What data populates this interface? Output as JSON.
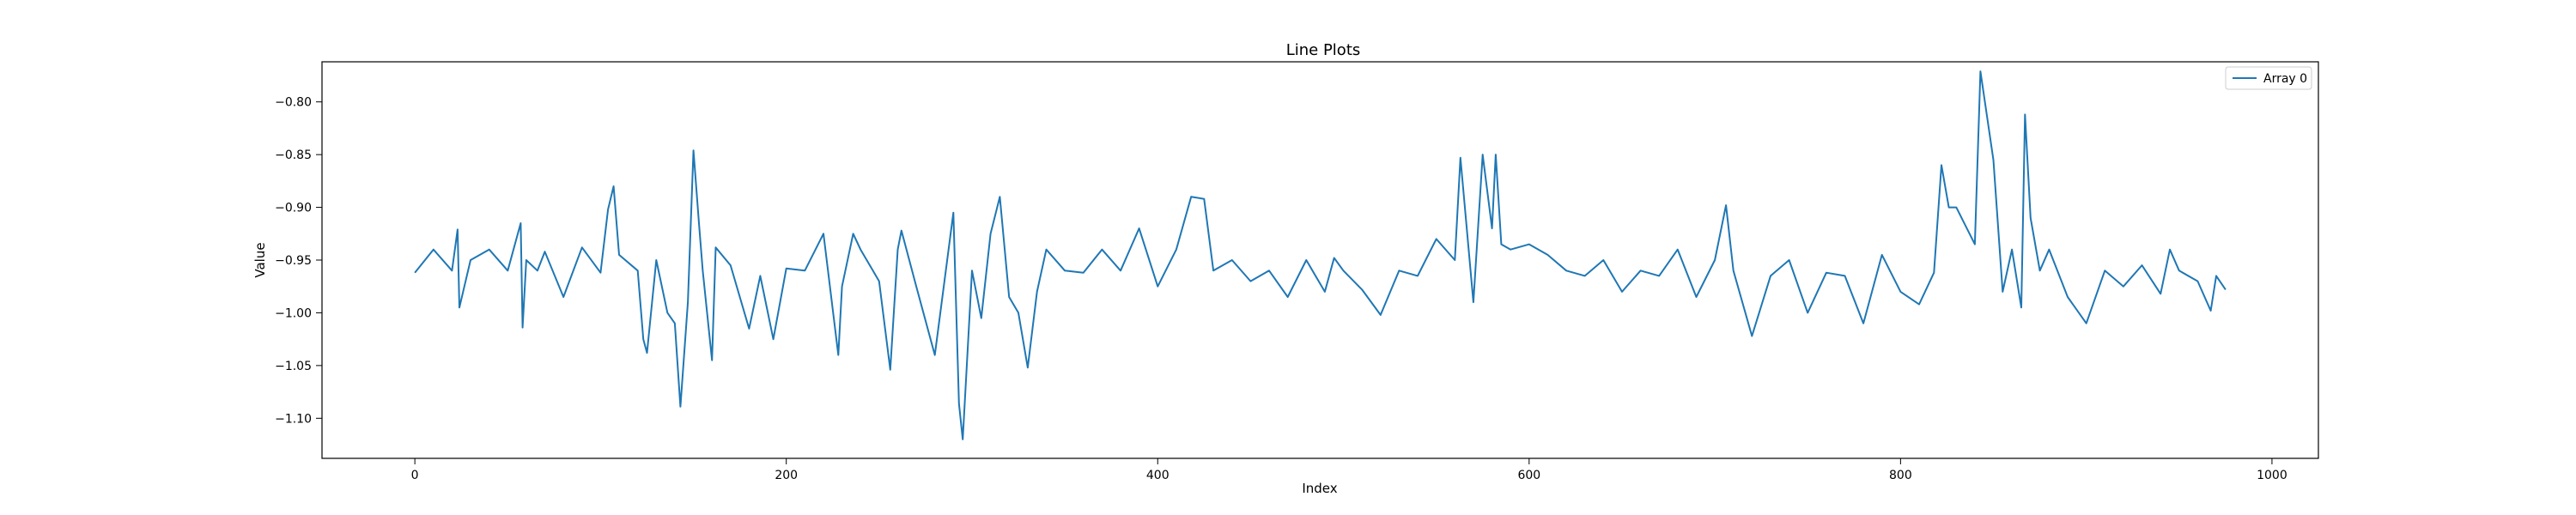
{
  "chart_data": {
    "type": "line",
    "title": "Line Plots",
    "xlabel": "Index",
    "ylabel": "Value",
    "xlim": [
      -50,
      1025
    ],
    "ylim": [
      -1.138,
      -0.762
    ],
    "xticks": [
      0,
      200,
      400,
      600,
      800,
      1000
    ],
    "xtick_labels": [
      "0",
      "200",
      "400",
      "600",
      "800",
      "1000"
    ],
    "yticks": [
      -0.8,
      -0.85,
      -0.9,
      -0.95,
      -1.0,
      -1.05,
      -1.1
    ],
    "ytick_labels": [
      "−0.80",
      "−0.85",
      "−0.90",
      "−0.95",
      "−1.00",
      "−1.05",
      "−1.10"
    ],
    "grid": false,
    "legend": "top-right",
    "series": [
      {
        "name": "Array 0",
        "color": "#1f77b4",
        "x": [
          0,
          10,
          20,
          23,
          24,
          30,
          40,
          50,
          57,
          58,
          60,
          66,
          70,
          80,
          90,
          100,
          104,
          107,
          110,
          120,
          123,
          125,
          130,
          136,
          140,
          143,
          147,
          150,
          153,
          155,
          160,
          162,
          170,
          180,
          186,
          193,
          200,
          210,
          220,
          228,
          230,
          236,
          240,
          245,
          250,
          256,
          260,
          262,
          270,
          280,
          290,
          293,
          295,
          300,
          305,
          310,
          315,
          320,
          325,
          330,
          335,
          340,
          350,
          360,
          370,
          380,
          390,
          400,
          410,
          418,
          425,
          430,
          440,
          450,
          460,
          470,
          480,
          490,
          495,
          500,
          510,
          520,
          530,
          540,
          550,
          560,
          563,
          570,
          575,
          580,
          582,
          585,
          590,
          600,
          610,
          620,
          630,
          640,
          650,
          660,
          670,
          680,
          690,
          700,
          706,
          710,
          720,
          730,
          740,
          750,
          760,
          770,
          780,
          790,
          800,
          810,
          818,
          822,
          826,
          830,
          840,
          843,
          850,
          855,
          860,
          865,
          867,
          870,
          875,
          880,
          890,
          900,
          910,
          920,
          930,
          940,
          945,
          950,
          960,
          967,
          970,
          975
        ],
        "y": [
          -0.962,
          -0.94,
          -0.96,
          -0.921,
          -0.995,
          -0.95,
          -0.94,
          -0.96,
          -0.915,
          -1.014,
          -0.95,
          -0.96,
          -0.942,
          -0.985,
          -0.938,
          -0.962,
          -0.902,
          -0.88,
          -0.945,
          -0.96,
          -1.025,
          -1.038,
          -0.95,
          -1.0,
          -1.01,
          -1.089,
          -0.99,
          -0.846,
          -0.915,
          -0.96,
          -1.045,
          -0.938,
          -0.955,
          -1.015,
          -0.965,
          -1.025,
          -0.958,
          -0.96,
          -0.925,
          -1.04,
          -0.975,
          -0.925,
          -0.94,
          -0.955,
          -0.97,
          -1.054,
          -0.94,
          -0.922,
          -0.975,
          -1.04,
          -0.905,
          -1.086,
          -1.12,
          -0.96,
          -1.005,
          -0.925,
          -0.89,
          -0.985,
          -1.0,
          -1.052,
          -0.98,
          -0.94,
          -0.96,
          -0.962,
          -0.94,
          -0.96,
          -0.92,
          -0.975,
          -0.94,
          -0.89,
          -0.892,
          -0.96,
          -0.95,
          -0.97,
          -0.96,
          -0.985,
          -0.95,
          -0.98,
          -0.948,
          -0.96,
          -0.978,
          -1.002,
          -0.96,
          -0.965,
          -0.93,
          -0.95,
          -0.853,
          -0.99,
          -0.85,
          -0.92,
          -0.85,
          -0.935,
          -0.94,
          -0.935,
          -0.945,
          -0.96,
          -0.965,
          -0.95,
          -0.98,
          -0.96,
          -0.965,
          -0.94,
          -0.985,
          -0.95,
          -0.898,
          -0.96,
          -1.022,
          -0.965,
          -0.95,
          -1.0,
          -0.962,
          -0.965,
          -1.01,
          -0.945,
          -0.98,
          -0.992,
          -0.962,
          -0.86,
          -0.9,
          -0.9,
          -0.935,
          -0.771,
          -0.855,
          -0.98,
          -0.94,
          -0.995,
          -0.812,
          -0.91,
          -0.96,
          -0.94,
          -0.985,
          -1.01,
          -0.96,
          -0.975,
          -0.955,
          -0.982,
          -0.94,
          -0.96,
          -0.97,
          -0.998,
          -0.965,
          -0.978
        ]
      }
    ]
  }
}
